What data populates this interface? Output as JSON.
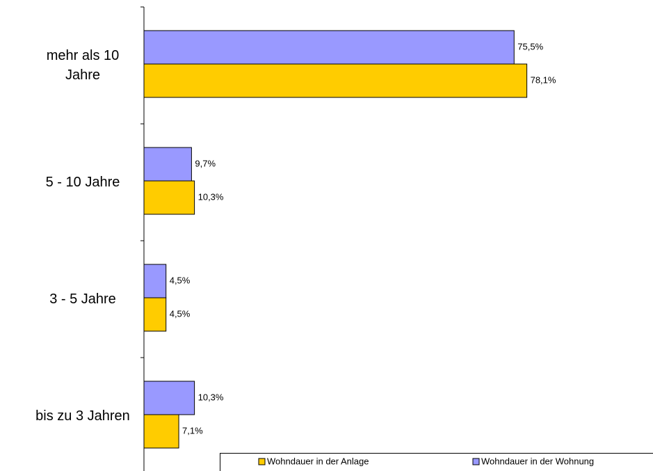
{
  "chart_data": {
    "type": "barh",
    "categories": [
      "mehr als 10 Jahre",
      "5 - 10 Jahre",
      "3 - 5 Jahre",
      "bis zu 3 Jahren"
    ],
    "series": [
      {
        "name": "Wohndauer in der Anlage",
        "color": "#FFCC00",
        "values": [
          78.1,
          10.3,
          4.5,
          7.1
        ],
        "value_labels": [
          "78,1%",
          "10,3%",
          "4,5%",
          "7,1%"
        ]
      },
      {
        "name": "Wohndauer in der Wohnung",
        "color": "#9999FF",
        "values": [
          75.5,
          9.7,
          4.5,
          10.3
        ],
        "value_labels": [
          "75,5%",
          "9,7%",
          "4,5%",
          "10,3%"
        ]
      }
    ],
    "xlim": [
      0,
      100
    ]
  }
}
